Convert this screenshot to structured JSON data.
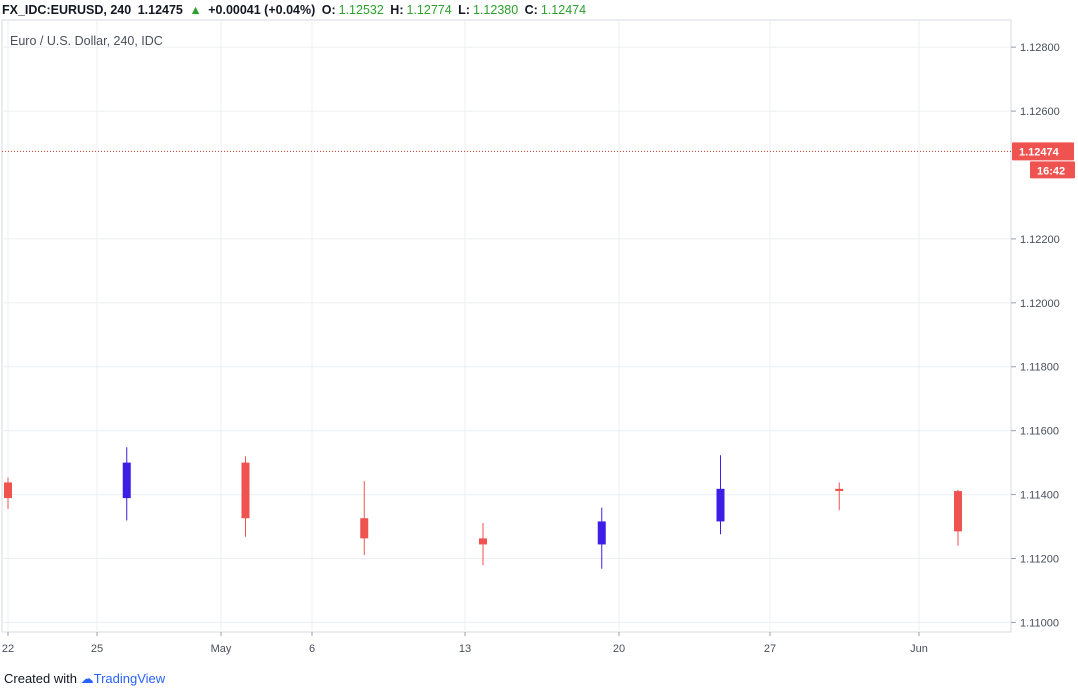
{
  "header": {
    "symbol": "FX_IDC:EURUSD, 240",
    "last": "1.12475",
    "change": "+0.00041 (+0.04%)",
    "o_label": "O:",
    "o_value": "1.12532",
    "h_label": "H:",
    "h_value": "1.12774",
    "l_label": "L:",
    "l_value": "1.12380",
    "c_label": "C:",
    "c_value": "1.12474"
  },
  "footer": {
    "created_with": "Created with",
    "brand": "TradingView"
  },
  "colors": {
    "up": "#3c1ee6",
    "down": "#ef5350",
    "grid": "#eceff2",
    "price_line": "#c0392b",
    "label_bg": "#ef5350"
  },
  "chart_data": {
    "type": "candlestick",
    "title": "Euro / U.S. Dollar, 240, IDC",
    "ylim": [
      1.1097,
      1.12885
    ],
    "y_ticks": [
      "1.12800",
      "1.12600",
      "1.12200",
      "1.12000",
      "1.11800",
      "1.11600",
      "1.11400",
      "1.11200",
      "1.11000"
    ],
    "x_ticks": [
      "22",
      "25",
      "May",
      "6",
      "13",
      "20",
      "27",
      "Jun"
    ],
    "last_price_label": "1.12474",
    "countdown_label": "16:42",
    "last_price": 1.12474,
    "grid": true,
    "ohlc": [
      [
        1.11438,
        1.11453,
        1.11355,
        1.11389
      ],
      [
        1.11389,
        1.11548,
        1.11319,
        1.115
      ],
      [
        1.115,
        1.1152,
        1.11268,
        1.11326
      ],
      [
        1.11326,
        1.11442,
        1.11211,
        1.11263
      ],
      [
        1.11263,
        1.11311,
        1.11179,
        1.11244
      ],
      [
        1.11244,
        1.11359,
        1.11168,
        1.11316
      ],
      [
        1.11316,
        1.11523,
        1.11276,
        1.11418
      ],
      [
        1.11418,
        1.11438,
        1.11351,
        1.11411
      ],
      [
        1.11411,
        1.11415,
        1.1124,
        1.11285
      ]
    ]
  }
}
